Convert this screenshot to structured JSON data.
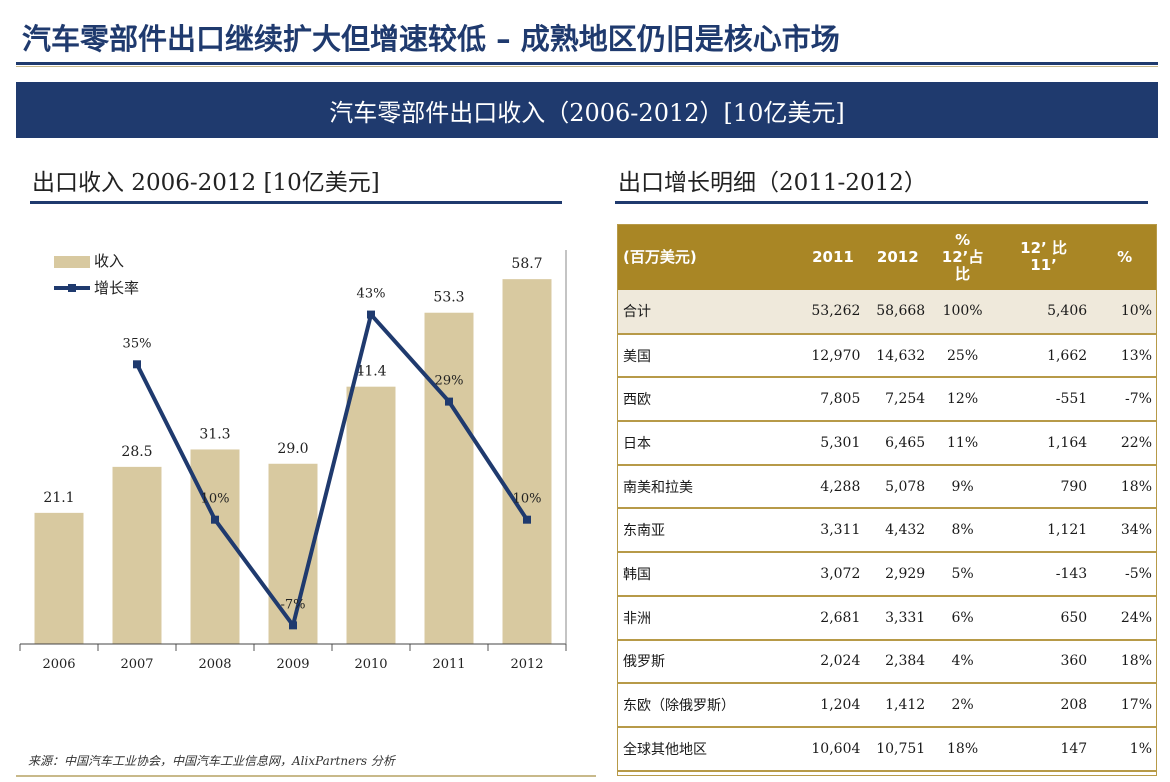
{
  "page": {
    "title": "汽车零部件出口继续扩大但增速较低 – 成熟地区仍旧是核心市场",
    "banner": "汽车零部件出口收入（2006-2012）[10亿美元]",
    "left_subtitle": "出口收入 2006-2012 [10亿美元]",
    "right_subtitle": "出口增长明细（2011-2012）",
    "source": "来源：中国汽车工业协会，中国汽车工业信息网，AlixPartners 分析"
  },
  "colors": {
    "navy": "#1f3a6e",
    "gold": "#a98625",
    "bar": "#d8c9a0",
    "line": "#1f3a6e"
  },
  "chart_data": {
    "type": "bar",
    "categories": [
      "2006",
      "2007",
      "2008",
      "2009",
      "2010",
      "2011",
      "2012"
    ],
    "series": [
      {
        "name": "收入",
        "type": "bar",
        "values": [
          21.1,
          28.5,
          31.3,
          29.0,
          41.4,
          53.3,
          58.7
        ],
        "labels": [
          "21.1",
          "28.5",
          "31.3",
          "29.0",
          "41.4",
          "53.3",
          "58.7"
        ]
      },
      {
        "name": "增长率",
        "type": "line",
        "values": [
          null,
          35,
          10,
          -7,
          43,
          29,
          10
        ],
        "labels": [
          "",
          "35%",
          "10%",
          "-7%",
          "43%",
          "29%",
          "10%"
        ]
      }
    ],
    "legend": [
      "收入",
      "增长率"
    ],
    "legend_position": "top-left",
    "ylim_bar": [
      0,
      65
    ],
    "ylim_line": [
      -10,
      55
    ],
    "grid": false
  },
  "table": {
    "headers": [
      "(百万美元)",
      "2011",
      "2012",
      "%\n12’占\n比",
      "12’ 比\n11’",
      "%"
    ],
    "rows": [
      [
        "合计",
        "53,262",
        "58,668",
        "100%",
        "5,406",
        "10%"
      ],
      [
        "美国",
        "12,970",
        "14,632",
        "25%",
        "1,662",
        "13%"
      ],
      [
        "西欧",
        "7,805",
        "7,254",
        "12%",
        "-551",
        "-7%"
      ],
      [
        "日本",
        "5,301",
        "6,465",
        "11%",
        "1,164",
        "22%"
      ],
      [
        "南美和拉美",
        "4,288",
        "5,078",
        "9%",
        "790",
        "18%"
      ],
      [
        "东南亚",
        "3,311",
        "4,432",
        "8%",
        "1,121",
        "34%"
      ],
      [
        "韩国",
        "3,072",
        "2,929",
        "5%",
        "-143",
        "-5%"
      ],
      [
        "非洲",
        "2,681",
        "3,331",
        "6%",
        "650",
        "24%"
      ],
      [
        "俄罗斯",
        "2,024",
        "2,384",
        "4%",
        "360",
        "18%"
      ],
      [
        "东欧（除俄罗斯）",
        "1,204",
        "1,412",
        "2%",
        "208",
        "17%"
      ],
      [
        "全球其他地区",
        "10,604",
        "10,751",
        "18%",
        "147",
        "1%"
      ]
    ]
  }
}
